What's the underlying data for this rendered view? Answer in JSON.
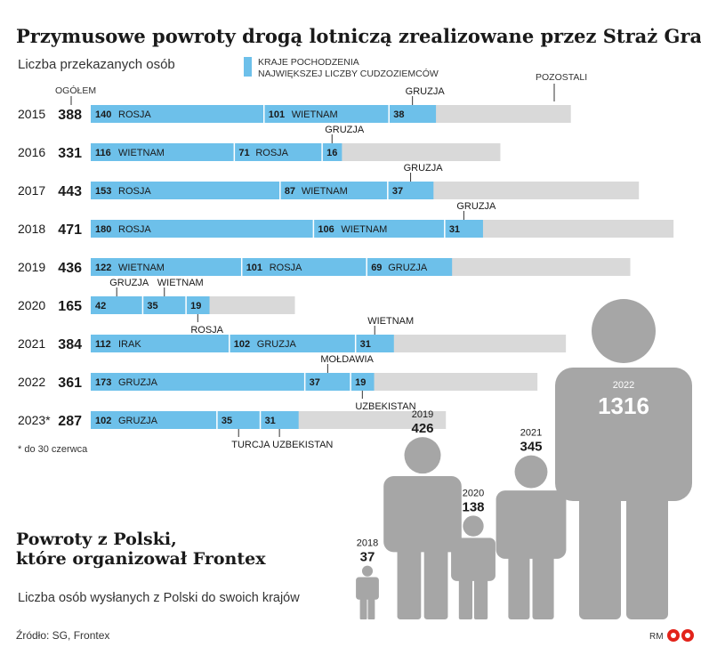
{
  "chart_data": [
    {
      "type": "bar",
      "stacked": true,
      "orientation": "horizontal",
      "title": "Przymusowe powroty drogą lotniczą zrealizowane przez Straż Graniczną",
      "subtitle": "Liczba przekazanych osób",
      "total_header": "OGÓŁEM",
      "legend": {
        "origin_label": "KRAJE POCHODZENIA NAJWIĘKSZEJ LICZBY CUDZOZIEMCÓW",
        "others_label": "POZOSTALI",
        "origin_color": "#6dc0ea",
        "others_color": "#d9d9d9"
      },
      "footnote": "* do 30 czerwca",
      "rows": [
        {
          "year": "2015",
          "total": 388,
          "segments": [
            {
              "value": 140,
              "country": "ROSJA"
            },
            {
              "value": 101,
              "country": "WIETNAM"
            },
            {
              "value": 38,
              "country": "GRUZJA"
            }
          ]
        },
        {
          "year": "2016",
          "total": 331,
          "segments": [
            {
              "value": 116,
              "country": "WIETNAM"
            },
            {
              "value": 71,
              "country": "ROSJA"
            },
            {
              "value": 16,
              "country": "GRUZJA"
            }
          ]
        },
        {
          "year": "2017",
          "total": 443,
          "segments": [
            {
              "value": 153,
              "country": "ROSJA"
            },
            {
              "value": 87,
              "country": "WIETNAM"
            },
            {
              "value": 37,
              "country": "GRUZJA"
            }
          ]
        },
        {
          "year": "2018",
          "total": 471,
          "segments": [
            {
              "value": 180,
              "country": "ROSJA"
            },
            {
              "value": 106,
              "country": "WIETNAM"
            },
            {
              "value": 31,
              "country": "GRUZJA"
            }
          ]
        },
        {
          "year": "2019",
          "total": 436,
          "segments": [
            {
              "value": 122,
              "country": "WIETNAM"
            },
            {
              "value": 101,
              "country": "ROSJA"
            },
            {
              "value": 69,
              "country": "GRUZJA"
            }
          ]
        },
        {
          "year": "2020",
          "total": 165,
          "segments": [
            {
              "value": 42,
              "country": "GRUZJA"
            },
            {
              "value": 35,
              "country": "WIETNAM"
            },
            {
              "value": 19,
              "country": "ROSJA"
            }
          ]
        },
        {
          "year": "2021",
          "total": 384,
          "segments": [
            {
              "value": 112,
              "country": "IRAK"
            },
            {
              "value": 102,
              "country": "GRUZJA"
            },
            {
              "value": 31,
              "country": "WIETNAM"
            }
          ]
        },
        {
          "year": "2022",
          "total": 361,
          "segments": [
            {
              "value": 173,
              "country": "GRUZJA"
            },
            {
              "value": 37,
              "country": "MOŁDAWIA"
            },
            {
              "value": 19,
              "country": "UZBEKISTAN"
            }
          ]
        },
        {
          "year": "2023*",
          "total": 287,
          "segments": [
            {
              "value": 102,
              "country": "GRUZJA"
            },
            {
              "value": 35,
              "country": "TURCJA"
            },
            {
              "value": 31,
              "country": "UZBEKISTAN"
            }
          ]
        }
      ]
    },
    {
      "type": "bar",
      "style": "pictogram",
      "title": "Powroty z Polski, które organizował Frontex",
      "subtitle": "Liczba osób wysłanych z Polski do swoich krajów",
      "color": "#a6a6a6",
      "categories": [
        "2018",
        "2019",
        "2020",
        "2021",
        "2022"
      ],
      "values": [
        37,
        426,
        138,
        345,
        1316
      ]
    }
  ],
  "source": "Źródło: SG, Frontex",
  "credit": "RM"
}
